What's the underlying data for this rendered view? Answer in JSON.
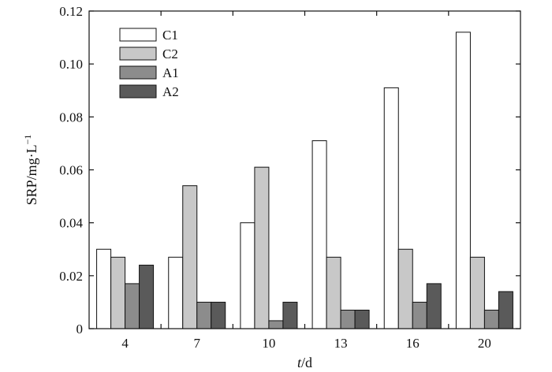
{
  "chart_data": {
    "type": "bar",
    "categories": [
      "4",
      "7",
      "10",
      "13",
      "16",
      "20"
    ],
    "series": [
      {
        "name": "C1",
        "color": "#ffffff",
        "values": [
          0.03,
          0.027,
          0.04,
          0.071,
          0.091,
          0.112
        ]
      },
      {
        "name": "C2",
        "color": "#c8c8c8",
        "values": [
          0.027,
          0.054,
          0.061,
          0.027,
          0.03,
          0.027
        ]
      },
      {
        "name": "A1",
        "color": "#8c8c8c",
        "values": [
          0.017,
          0.01,
          0.003,
          0.007,
          0.01,
          0.007
        ]
      },
      {
        "name": "A2",
        "color": "#5a5a5a",
        "values": [
          0.024,
          0.01,
          0.01,
          0.007,
          0.017,
          0.014
        ]
      }
    ],
    "title": "",
    "xlabel": {
      "italic": "t",
      "rest": "/d"
    },
    "ylabel": {
      "base": "SRP/mg·L",
      "superscript": "−1"
    },
    "ylim": [
      0,
      0.12
    ],
    "yticks": [
      "0",
      "0.02",
      "0.04",
      "0.06",
      "0.08",
      "0.10",
      "0.12"
    ],
    "grid": false,
    "legend_position": "top-left"
  }
}
